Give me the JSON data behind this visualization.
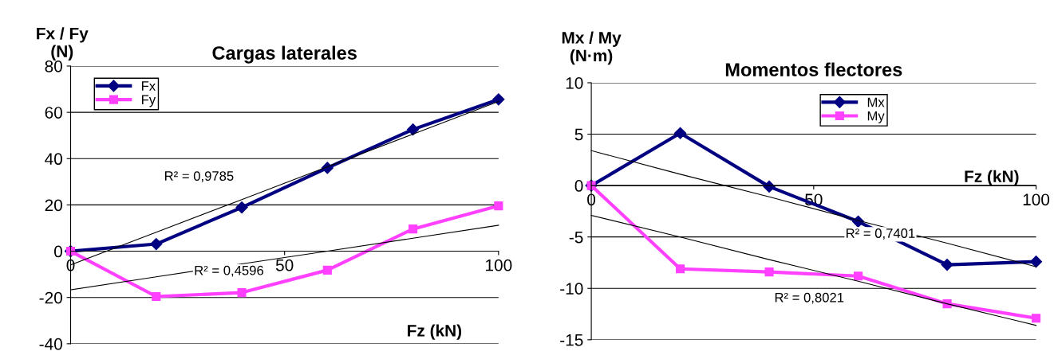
{
  "chart_data": [
    {
      "type": "line",
      "title": "Cargas laterales",
      "ylabel": "Fx / Fy\n(N)",
      "xlabel": "Fz (kN)",
      "x": [
        0,
        20,
        40,
        60,
        80,
        100
      ],
      "xlim": [
        0,
        100
      ],
      "xticks": [
        0,
        50,
        100
      ],
      "ylim": [
        -40,
        80
      ],
      "yticks": [
        -40,
        -20,
        0,
        20,
        40,
        60,
        80
      ],
      "grid": "y",
      "legend": "top left",
      "line_style": "solid",
      "series": [
        {
          "name": "Fx",
          "color": "#000080",
          "marker": "diamond",
          "values": [
            0,
            3.1,
            18.9,
            36,
            52.6,
            65.6
          ]
        },
        {
          "name": "Fy",
          "color": "#ff40ff",
          "marker": "square",
          "values": [
            0,
            -19.6,
            -17.9,
            -8.2,
            9.6,
            19.6
          ]
        },
        {
          "type": "line",
          "color": "#000000",
          "marker": "none",
          "values": [
            -5.9,
            8.2,
            22.3,
            36.5,
            50.6,
            64.7
          ]
        },
        {
          "type": "line",
          "color": "#000000",
          "marker": "none",
          "values": [
            -16.7,
            -11.1,
            -5.5,
            0,
            5.6,
            11.2
          ]
        }
      ],
      "annotations": [
        "R² = 0,9785",
        "R² = 0,4596"
      ]
    },
    {
      "type": "line",
      "title": "Momentos flectores",
      "ylabel": "Mx / My\n(N·m)",
      "xlabel": "Fz (kN)",
      "x": [
        0,
        20,
        40,
        60,
        80,
        100
      ],
      "xlim": [
        0,
        100
      ],
      "xticks": [
        0,
        50,
        100
      ],
      "ylim": [
        -15,
        10
      ],
      "yticks": [
        -15,
        -10,
        -5,
        0,
        5,
        10
      ],
      "grid": "y",
      "legend": "top right",
      "line_style": "solid",
      "series": [
        {
          "name": "Mx",
          "color": "#000080",
          "marker": "diamond",
          "values": [
            0,
            5.1,
            -0.1,
            -3.5,
            -7.7,
            -7.4
          ]
        },
        {
          "name": "My",
          "color": "#ff40ff",
          "marker": "square",
          "values": [
            0,
            -8.1,
            -8.4,
            -8.8,
            -11.5,
            -12.9
          ]
        },
        {
          "type": "line",
          "color": "#000000",
          "marker": "none",
          "values": [
            3.4,
            1.1,
            -1.1,
            -3.4,
            -5.6,
            -7.9
          ]
        },
        {
          "type": "line",
          "color": "#000000",
          "marker": "none",
          "values": [
            -2.9,
            -5.0,
            -7.2,
            -9.3,
            -11.5,
            -13.6
          ]
        }
      ],
      "annotations": [
        "R² = 0,7401",
        "R² = 0,8021"
      ]
    }
  ]
}
